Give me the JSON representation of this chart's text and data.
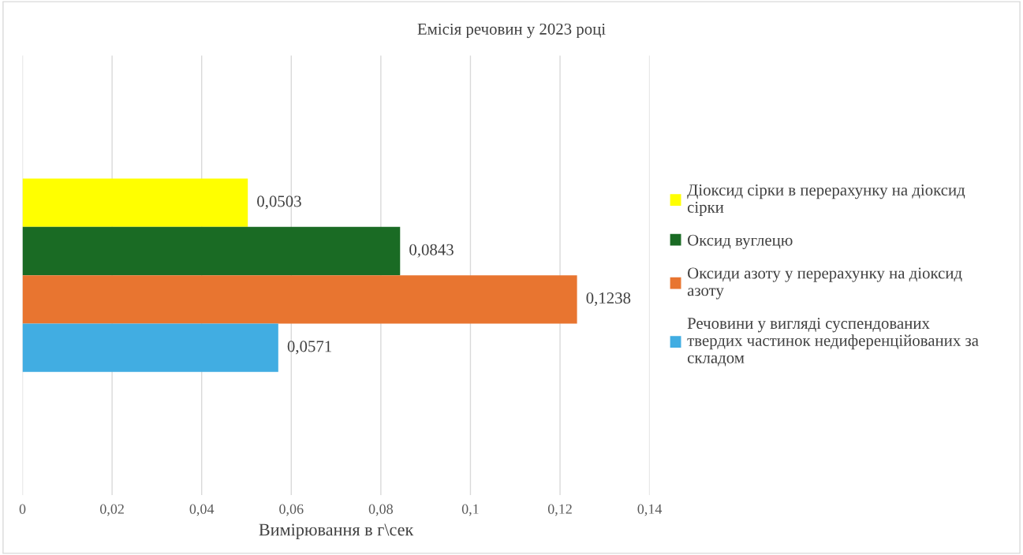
{
  "chart_data": {
    "type": "bar",
    "orientation": "horizontal",
    "title": "Емісія речовин у 2023 році",
    "xlabel": "Вимірювання в г\\сек",
    "categories": [
      null
    ],
    "series": [
      {
        "name": "Діоксид сірки в перерахунку на діоксид сірки",
        "color": "#ffff00",
        "values": [
          0.0503
        ],
        "value_labels": [
          "0,0503"
        ]
      },
      {
        "name": "Оксид вуглецю",
        "color": "#1a6b24",
        "values": [
          0.0843
        ],
        "value_labels": [
          "0,0843"
        ]
      },
      {
        "name": "Оксиди азоту у перерахунку на діоксид азоту",
        "color": "#e87530",
        "values": [
          0.1238
        ],
        "value_labels": [
          "0,1238"
        ]
      },
      {
        "name": "Речовини у вигляді суспендованих твердих частинок недиференційованих за складом",
        "color": "#41ade2",
        "values": [
          0.0571
        ],
        "value_labels": [
          "0,0571"
        ]
      }
    ],
    "xlim": [
      0,
      0.14
    ],
    "xticks": [
      0,
      {
        "value": 0.02,
        "label": "0,02"
      },
      {
        "value": 0.04,
        "label": "0,04"
      },
      {
        "value": 0.06,
        "label": "0,06"
      },
      {
        "value": 0.08,
        "label": "0,08"
      },
      {
        "value": 0.1,
        "label": "0,1"
      },
      {
        "value": 0.12,
        "label": "0,12"
      },
      {
        "value": 0.14,
        "label": "0,14"
      }
    ],
    "grid": "x",
    "legend": "right"
  }
}
